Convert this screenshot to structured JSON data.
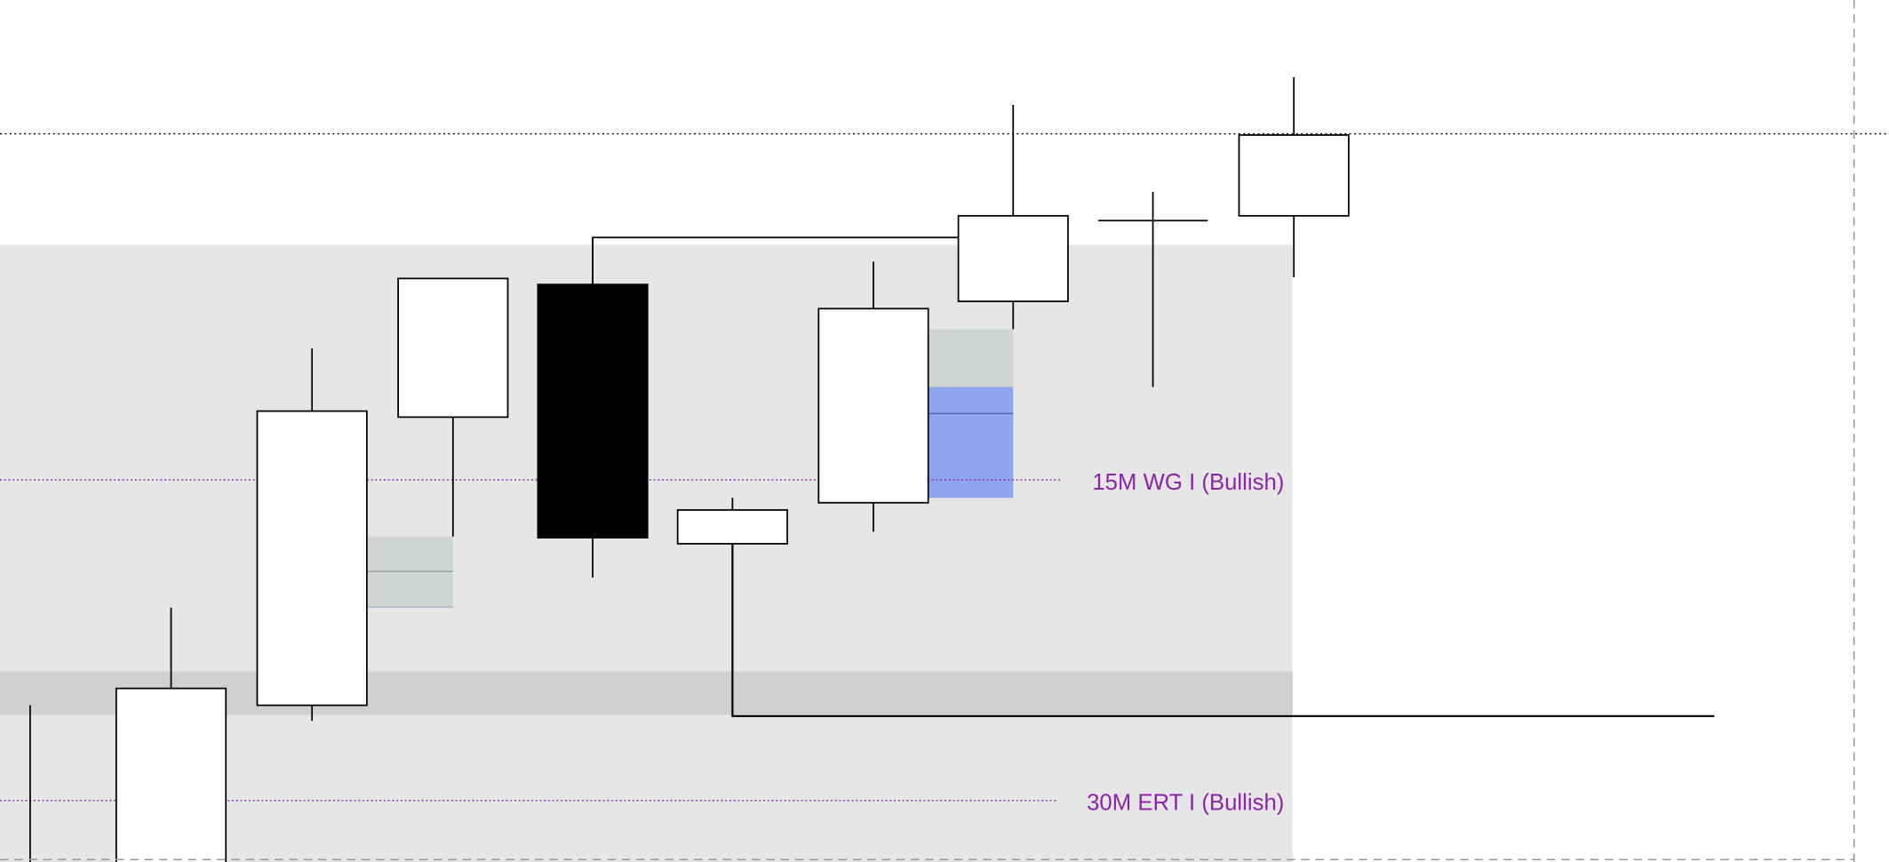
{
  "chart_data": {
    "type": "candlestick",
    "title": "",
    "xlabel": "",
    "ylabel": "",
    "grid": false,
    "note_units": "relative price levels (no axis printed)",
    "ylim": [
      0,
      715
    ],
    "candles": [
      {
        "open": null,
        "high": 130,
        "low": null,
        "close": null,
        "direction": "unknown"
      },
      {
        "open": null,
        "high": 211,
        "low": null,
        "close": 144,
        "direction": "up"
      },
      {
        "open": 130,
        "high": 426,
        "low": 117,
        "close": 374,
        "direction": "up"
      },
      {
        "open": 369,
        "high": 484,
        "low": 270,
        "close": 484,
        "direction": "up"
      },
      {
        "open": 479,
        "high": 518,
        "low": 236,
        "close": 269,
        "direction": "down"
      },
      {
        "open": 264,
        "high": 302,
        "low": 121,
        "close": 292,
        "direction": "up"
      },
      {
        "open": 298,
        "high": 498,
        "low": 274,
        "close": 459,
        "direction": "up"
      },
      {
        "open": 465,
        "high": 628,
        "low": 442,
        "close": 536,
        "direction": "up"
      },
      {
        "open": 532,
        "high": 556,
        "low": 394,
        "close": 532,
        "direction": "doji"
      },
      {
        "open": 536,
        "high": 651,
        "low": 485,
        "close": 603,
        "direction": "up"
      }
    ],
    "levels": [
      {
        "value": 604,
        "style": "dotted",
        "color": "#000000"
      },
      {
        "value": 317,
        "style": "dotted",
        "color": "#8e24aa",
        "label": "15M WG I (Bullish)"
      },
      {
        "value": 51,
        "style": "dotted",
        "color": "#8e24aa",
        "label": "30M ERT I (Bullish)"
      },
      {
        "value": 518,
        "style": "solid-step",
        "color": "#000000"
      },
      {
        "value": 121,
        "style": "solid-step",
        "color": "#000000"
      }
    ],
    "zones": [
      {
        "from": 0,
        "to": 512,
        "color": "#e6e6e6"
      },
      {
        "from": 122,
        "to": 158,
        "color": "#d0d0d0"
      },
      {
        "from": 211,
        "to": 270,
        "color": "#d1d5d1"
      },
      {
        "from": 394,
        "to": 442,
        "color": "#d1d5d1"
      },
      {
        "from": 302,
        "to": 394,
        "color": "#8ea4ec"
      }
    ],
    "colors": {
      "up_body": "#ffffff",
      "down_body": "#000000",
      "label": "#8e24aa",
      "border_dashed": "#9a9aa2"
    }
  }
}
